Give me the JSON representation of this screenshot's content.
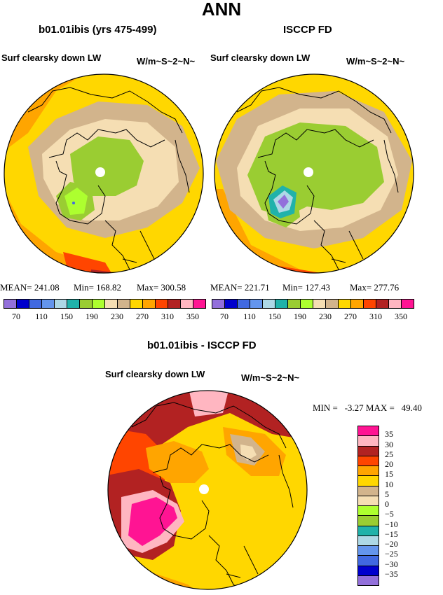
{
  "page_title": "ANN",
  "panels": [
    {
      "title": "b01.01ibis (yrs 475-499)",
      "variable": "Surf clearsky down LW",
      "units": "W/m~S~2~N~",
      "stats": {
        "mean": "MEAN= 241.08",
        "min": "Min= 168.82",
        "max": "Max= 300.58"
      }
    },
    {
      "title": "ISCCP FD",
      "variable": "Surf clearsky down LW",
      "units": "W/m~S~2~N~",
      "stats": {
        "mean": "MEAN= 221.71",
        "min": "Min= 127.43",
        "max": "Max= 277.76"
      }
    }
  ],
  "colorbar_top": {
    "labels": [
      "70",
      "110",
      "150",
      "190",
      "230",
      "270",
      "310",
      "350"
    ],
    "colors": [
      "#9370db",
      "#0000cd",
      "#4169e1",
      "#6495ed",
      "#add8e6",
      "#20b2aa",
      "#9acd32",
      "#adff2f",
      "#f5deb3",
      "#d2b48c",
      "#ffd700",
      "#ffa500",
      "#ff4500",
      "#b22222",
      "#ffb6c1",
      "#ff1493"
    ]
  },
  "diff_panel": {
    "title": "b01.01ibis - ISCCP FD",
    "variable": "Surf clearsky down LW",
    "units": "W/m~S~2~N~",
    "stats": "MIN =   -3.27 MAX =   49.40"
  },
  "colorbar_diff": {
    "labels": [
      "35",
      "30",
      "25",
      "20",
      "15",
      "10",
      "5",
      "0",
      "−5",
      "−10",
      "−15",
      "−20",
      "−25",
      "−30",
      "−35"
    ],
    "colors": [
      "#ff1493",
      "#ffb6c1",
      "#b22222",
      "#ff4500",
      "#ffa500",
      "#ffd700",
      "#d2b48c",
      "#f5deb3",
      "#adff2f",
      "#9acd32",
      "#20b2aa",
      "#add8e6",
      "#6495ed",
      "#4169e1",
      "#0000cd",
      "#9370db"
    ]
  }
}
